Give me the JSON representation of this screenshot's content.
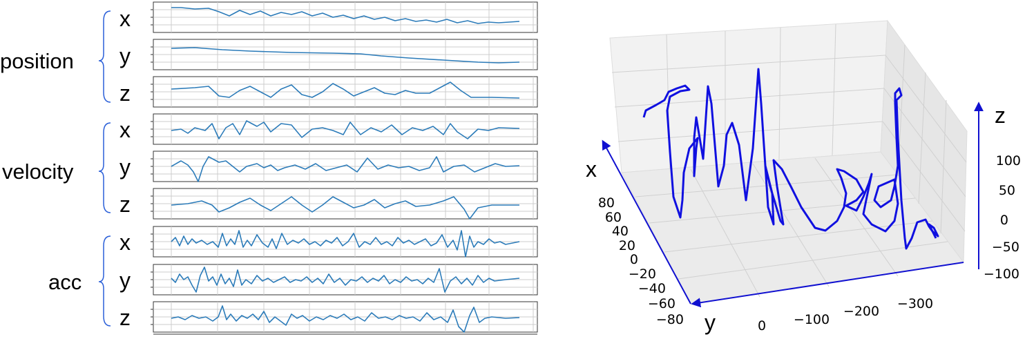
{
  "groups": [
    {
      "label": "position",
      "axes": [
        "x",
        "y",
        "z"
      ]
    },
    {
      "label": "velocity",
      "axes": [
        "x",
        "y",
        "z"
      ]
    },
    {
      "label": "acc",
      "axes": [
        "x",
        "y",
        "z"
      ]
    }
  ],
  "plot3d": {
    "x_label": "x",
    "y_label": "y",
    "z_label": "z",
    "x_ticks": [
      "80",
      "60",
      "40",
      "20",
      "0",
      "−20",
      "−40",
      "−60",
      "−80"
    ],
    "y_ticks": [
      "0",
      "−100",
      "−200",
      "−300"
    ],
    "z_ticks": [
      "100",
      "50",
      "0",
      "−50",
      "−100"
    ]
  }
}
